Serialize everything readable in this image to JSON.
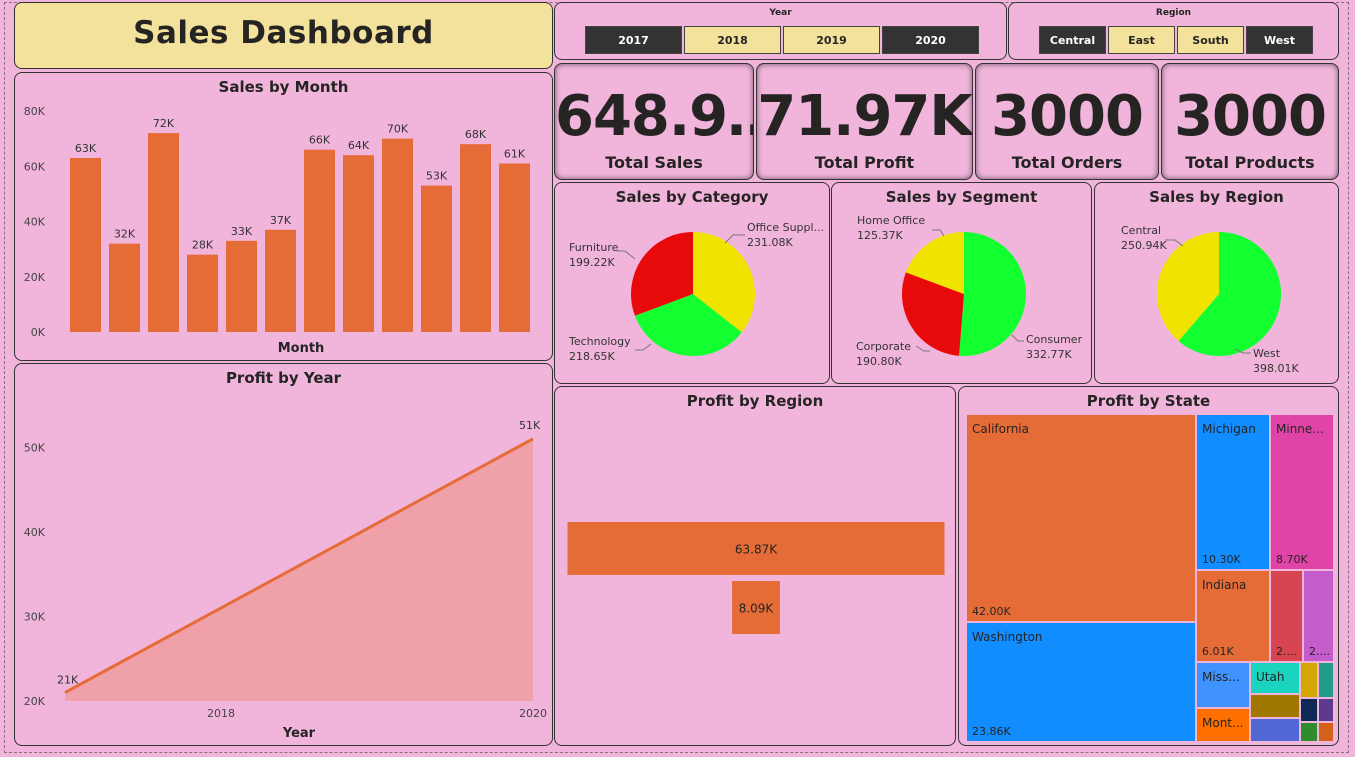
{
  "dashboard": {
    "title": "Sales Dashboard"
  },
  "slicers": {
    "year": {
      "label": "Year",
      "options": [
        {
          "text": "2017",
          "selected": true
        },
        {
          "text": "2018",
          "selected": false
        },
        {
          "text": "2019",
          "selected": false
        },
        {
          "text": "2020",
          "selected": true
        }
      ]
    },
    "region": {
      "label": "Region",
      "options": [
        {
          "text": "Central",
          "selected": true
        },
        {
          "text": "East",
          "selected": false
        },
        {
          "text": "South",
          "selected": false
        },
        {
          "text": "West",
          "selected": true
        }
      ]
    }
  },
  "kpis": [
    {
      "value": "648.9…",
      "label": "Total Sales"
    },
    {
      "value": "71.97K",
      "label": "Total Profit"
    },
    {
      "value": "3000",
      "label": "Total Orders"
    },
    {
      "value": "3000",
      "label": "Total Products"
    }
  ],
  "colors": {
    "bar": "#e66c37",
    "bar_light": "#f0a0a8",
    "yellow": "#f0e300",
    "green": "#12ff30",
    "red": "#e80a0a"
  },
  "chart_data": [
    {
      "id": "sales_by_month",
      "type": "bar",
      "title": "Sales by Month",
      "xlabel": "Month",
      "ylabel": "",
      "ylim": [
        0,
        80000
      ],
      "yticks": [
        "0K",
        "20K",
        "40K",
        "60K",
        "80K"
      ],
      "values": [
        63000,
        32000,
        72000,
        28000,
        33000,
        37000,
        66000,
        64000,
        70000,
        53000,
        68000,
        61000
      ],
      "labels": [
        "63K",
        "32K",
        "72K",
        "28K",
        "33K",
        "37K",
        "66K",
        "64K",
        "70K",
        "53K",
        "68K",
        "61K"
      ]
    },
    {
      "id": "profit_by_year",
      "type": "area",
      "title": "Profit by Year",
      "xlabel": "Year",
      "ylabel": "",
      "ylim": [
        20000,
        55000
      ],
      "yticks": [
        "20K",
        "30K",
        "40K",
        "50K"
      ],
      "xticks": [
        "2018",
        "2020"
      ],
      "x": [
        2017,
        2020
      ],
      "values": [
        21000,
        51000
      ],
      "labels": [
        "21K",
        "51K"
      ]
    },
    {
      "id": "sales_by_category",
      "type": "pie",
      "title": "Sales by Category",
      "slices": [
        {
          "name": "Office Suppl...",
          "value": 231080,
          "label": "231.08K",
          "color": "#f0e300"
        },
        {
          "name": "Technology",
          "value": 218650,
          "label": "218.65K",
          "color": "#12ff30"
        },
        {
          "name": "Furniture",
          "value": 199220,
          "label": "199.22K",
          "color": "#e80a0a"
        }
      ]
    },
    {
      "id": "sales_by_segment",
      "type": "pie",
      "title": "Sales by Segment",
      "slices": [
        {
          "name": "Consumer",
          "value": 332770,
          "label": "332.77K",
          "color": "#12ff30"
        },
        {
          "name": "Corporate",
          "value": 190800,
          "label": "190.80K",
          "color": "#e80a0a"
        },
        {
          "name": "Home Office",
          "value": 125370,
          "label": "125.37K",
          "color": "#f0e300"
        }
      ]
    },
    {
      "id": "sales_by_region",
      "type": "pie",
      "title": "Sales by Region",
      "slices": [
        {
          "name": "West",
          "value": 398010,
          "label": "398.01K",
          "color": "#12ff30"
        },
        {
          "name": "Central",
          "value": 250940,
          "label": "250.94K",
          "color": "#f0e300"
        }
      ]
    },
    {
      "id": "profit_by_region",
      "type": "bar",
      "title": "Profit by Region",
      "values": [
        63870,
        8090
      ],
      "labels": [
        "63.87K",
        "8.09K"
      ]
    },
    {
      "id": "profit_by_state",
      "type": "treemap",
      "title": "Profit by State",
      "tiles": [
        {
          "name": "California",
          "label": "42.00K",
          "value": 42000,
          "color": "#e66c37"
        },
        {
          "name": "Washington",
          "label": "23.86K",
          "value": 23860,
          "color": "#118dff"
        },
        {
          "name": "Michigan",
          "label": "10.30K",
          "value": 10300,
          "color": "#118dff"
        },
        {
          "name": "Minne...",
          "label": "8.70K",
          "value": 8700,
          "color": "#e044a7"
        },
        {
          "name": "Indiana",
          "label": "6.01K",
          "value": 6010,
          "color": "#e66c37"
        },
        {
          "name": "",
          "label": "2....",
          "color": "#d64550"
        },
        {
          "name": "",
          "label": "2....",
          "color": "#c55ccc"
        },
        {
          "name": "Miss...",
          "label": "",
          "color": "#4092ff"
        },
        {
          "name": "Utah",
          "label": "",
          "color": "#1ad4c0"
        },
        {
          "name": "Mont...",
          "label": "",
          "color": "#ff6f00"
        },
        {
          "name": "",
          "label": "",
          "color": "#a07800"
        },
        {
          "name": "",
          "label": "",
          "color": "#4f68d4"
        },
        {
          "name": "",
          "label": "",
          "color": "#d4a800"
        },
        {
          "name": "",
          "label": "",
          "color": "#229c8c"
        },
        {
          "name": "",
          "label": "",
          "color": "#0d2a57"
        },
        {
          "name": "",
          "label": "",
          "color": "#5d3a8e"
        },
        {
          "name": "",
          "label": "",
          "color": "#2e8b2e"
        },
        {
          "name": "",
          "label": "",
          "color": "#d2621a"
        }
      ]
    }
  ]
}
